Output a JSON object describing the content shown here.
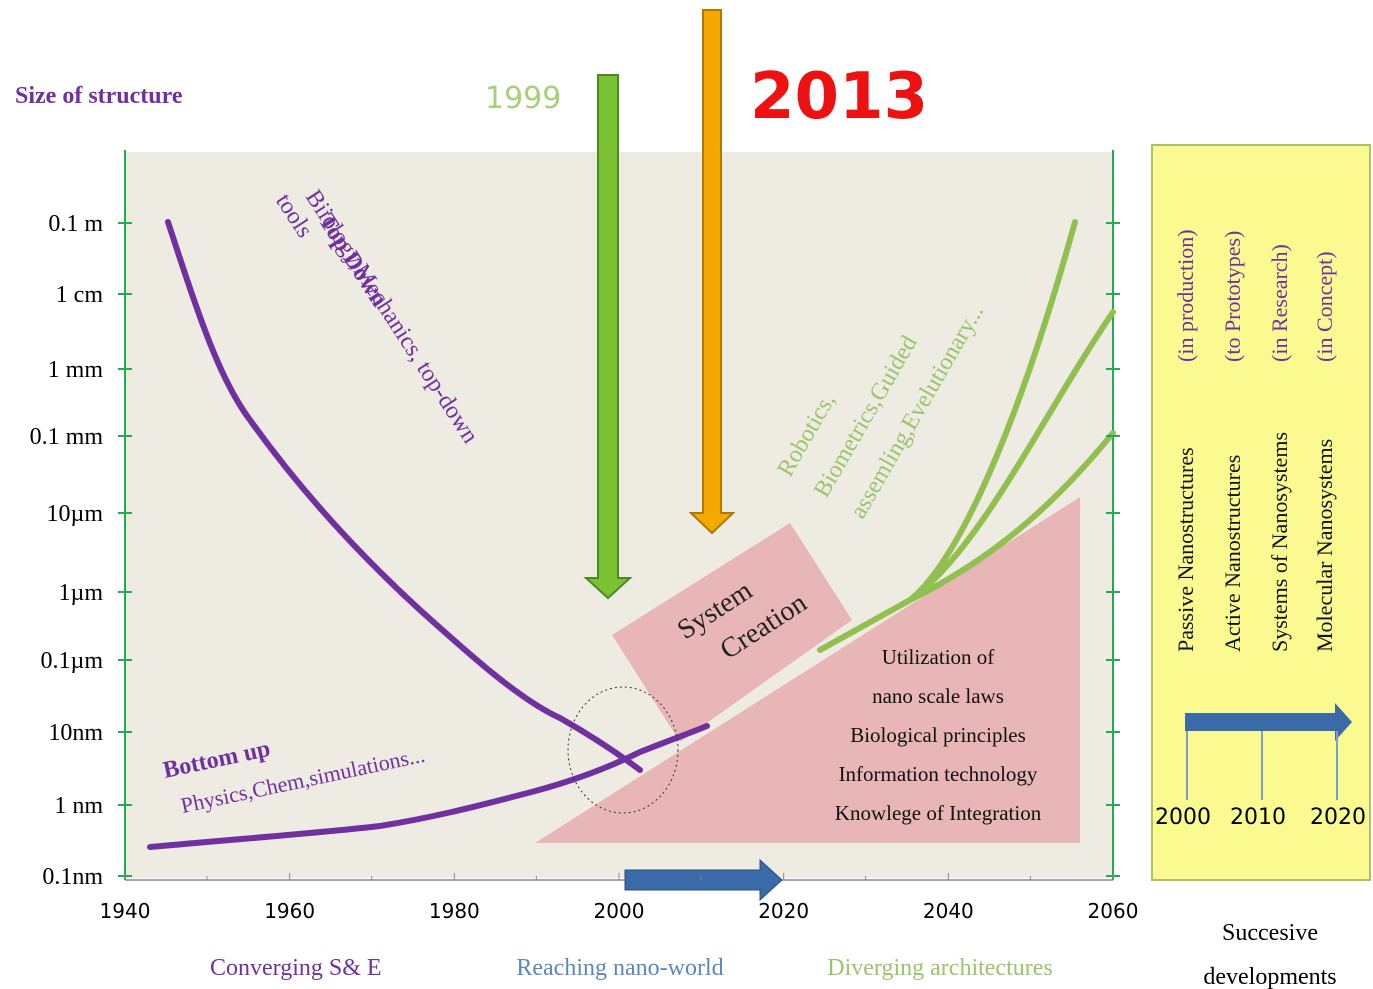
{
  "y_axis_title": "Size of structure",
  "y_labels": [
    "0.1 m",
    "1 cm",
    "1 mm",
    "0.1 mm",
    "10µm",
    "1µm",
    "0.1µm",
    "10nm",
    "1 nm",
    "0.1nm"
  ],
  "x_labels": [
    "1940",
    "1960",
    "1980",
    "2000",
    "2020",
    "2040",
    "2060"
  ],
  "markers": [
    "1999",
    "2013"
  ],
  "top_down": [
    "Top Down",
    "Biiology,Mechanics, top-down",
    "tools"
  ],
  "bottom_up": [
    "Bottom up",
    "Physics,Chem,simulations..."
  ],
  "diverging": [
    "Robotics,",
    "Biometrics,Guided",
    "assemling,Evelutionary..."
  ],
  "system_creation": [
    "System",
    "Creation"
  ],
  "utilization": [
    "Utilization of",
    "nano  scale laws",
    "Biological principles",
    "Information  technology",
    "Knowlege of Integration"
  ],
  "phases": [
    "Converging S& E",
    "Reaching nano-world",
    "Diverging architectures"
  ],
  "panel": {
    "items": [
      {
        "name": "Passive Nanostructures",
        "status": "(in production)"
      },
      {
        "name": "Active Nanostructures",
        "status": "(to Prototypes)"
      },
      {
        "name": "Systems of Nanosystems",
        "status": "(in Research)"
      },
      {
        "name": "Molecular Nanosystems",
        "status": "(in Concept)"
      }
    ],
    "years": [
      "2000",
      "2010",
      "2020"
    ],
    "caption": [
      "Succesive",
      "developments"
    ]
  }
}
